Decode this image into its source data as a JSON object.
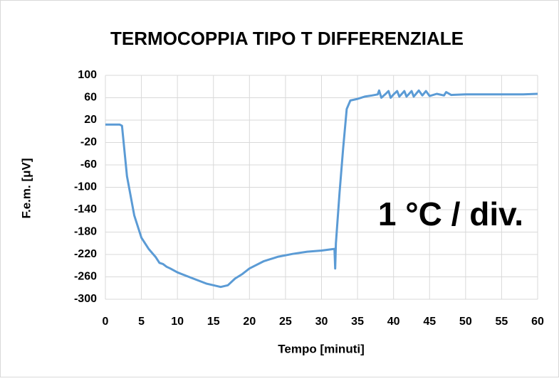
{
  "chart_data": {
    "type": "line",
    "title": "TERMOCOPPIA TIPO T DIFFERENZIALE",
    "x_label": "Tempo [minuti]",
    "y_label": "F.e.m. [μV]",
    "annotation": "1 °C / div.",
    "color": "#5b9bd5",
    "x": [
      0,
      2,
      2.3,
      3,
      4,
      5,
      6,
      7,
      7.5,
      8,
      8.5,
      9,
      10,
      12,
      14,
      15,
      16,
      17,
      18,
      19,
      20,
      22,
      24,
      26,
      28,
      30,
      31.8,
      31.9,
      32,
      32.5,
      33,
      33.5,
      34,
      35,
      36,
      37,
      37.8,
      38,
      38.3,
      39,
      39.3,
      39.6,
      40,
      40.5,
      40.8,
      41.5,
      41.8,
      42.5,
      42.8,
      43.5,
      44,
      44.5,
      45,
      46,
      47,
      47.3,
      48,
      50,
      55,
      58,
      60
    ],
    "values": [
      12,
      12,
      10,
      -80,
      -150,
      -190,
      -210,
      -225,
      -235,
      -237,
      -242,
      -245,
      -252,
      -262,
      -272,
      -275,
      -278,
      -275,
      -263,
      -255,
      -245,
      -232,
      -224,
      -219,
      -215,
      -213,
      -210,
      -245,
      -200,
      -110,
      -30,
      40,
      55,
      58,
      62,
      64,
      66,
      73,
      60,
      68,
      72,
      60,
      66,
      72,
      62,
      72,
      62,
      72,
      62,
      73,
      64,
      72,
      63,
      67,
      64,
      70,
      65,
      66,
      66,
      66,
      67
    ],
    "xlim": [
      0,
      60
    ],
    "xticks": [
      0,
      5,
      10,
      15,
      20,
      25,
      30,
      35,
      40,
      45,
      50,
      55,
      60
    ],
    "ylim": [
      -300,
      100
    ],
    "yticks": [
      100,
      60,
      20,
      -20,
      -60,
      -100,
      -140,
      -180,
      -220,
      -260,
      -300
    ],
    "grid": true
  }
}
